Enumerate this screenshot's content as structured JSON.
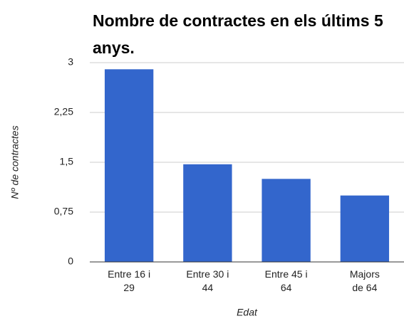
{
  "chart_data": {
    "type": "bar",
    "title": "Nombre de contractes en els últims 5 anys.",
    "y_label": "Nº de contractes",
    "x_label": "Edat",
    "categories": [
      "Entre 16 i 29",
      "Entre 30 i 44",
      "Entre 45 i 64",
      "Majors de 64"
    ],
    "values": [
      2.9,
      1.47,
      1.25,
      1
    ],
    "color": "#3366cc",
    "ylim": [
      0,
      3
    ],
    "yticks": [
      0,
      {
        "value": 0.75,
        "label": "0,75"
      },
      {
        "value": 1.5,
        "label": "1,5"
      },
      {
        "value": 2.25,
        "label": "2,25"
      },
      3
    ],
    "grid": true
  }
}
